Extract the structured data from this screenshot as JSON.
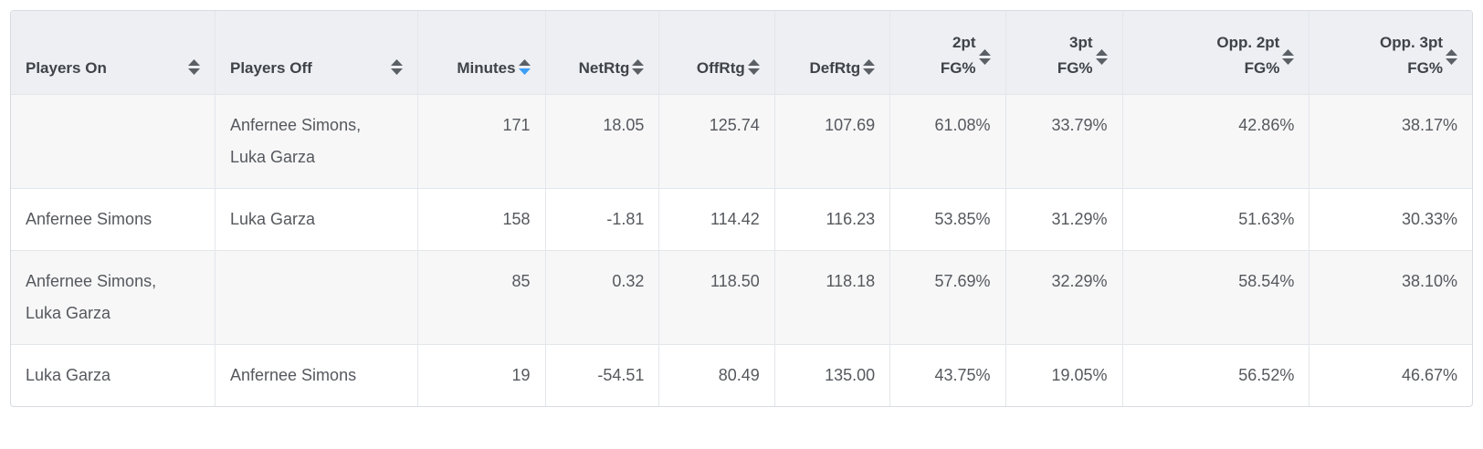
{
  "colors": {
    "header_bg": "#edeff3",
    "stripe_bg": "#f7f7f8",
    "row_bg": "#ffffff",
    "border": "#e3e6ea",
    "outer_border": "#d7dbe0",
    "header_text": "#3f4348",
    "body_text": "#55585d",
    "sort_inactive": "#5b6066",
    "sort_active": "#3b9ef8"
  },
  "table": {
    "columns": [
      {
        "id": "players-on",
        "label": "Players On",
        "align": "left",
        "sort": "none"
      },
      {
        "id": "players-off",
        "label": "Players Off",
        "align": "left",
        "sort": "none"
      },
      {
        "id": "minutes",
        "label": "Minutes",
        "align": "right",
        "sort": "desc"
      },
      {
        "id": "netrtg",
        "label": "NetRtg",
        "align": "right",
        "sort": "none"
      },
      {
        "id": "offrtg",
        "label": "OffRtg",
        "align": "right",
        "sort": "none"
      },
      {
        "id": "defrtg",
        "label": "DefRtg",
        "align": "right",
        "sort": "none"
      },
      {
        "id": "fg2",
        "label": "2pt\nFG%",
        "align": "right",
        "sort": "none"
      },
      {
        "id": "fg3",
        "label": "3pt\nFG%",
        "align": "right",
        "sort": "none"
      },
      {
        "id": "opp-fg2",
        "label": "Opp. 2pt\nFG%",
        "align": "right",
        "sort": "none"
      },
      {
        "id": "opp-fg3",
        "label": "Opp. 3pt\nFG%",
        "align": "right",
        "sort": "none"
      }
    ],
    "rows": [
      [
        "",
        "Anfernee Simons,\nLuka Garza",
        "171",
        "18.05",
        "125.74",
        "107.69",
        "61.08%",
        "33.79%",
        "42.86%",
        "38.17%"
      ],
      [
        "Anfernee Simons",
        "Luka Garza",
        "158",
        "-1.81",
        "114.42",
        "116.23",
        "53.85%",
        "31.29%",
        "51.63%",
        "30.33%"
      ],
      [
        "Anfernee Simons,\nLuka Garza",
        "",
        "85",
        "0.32",
        "118.50",
        "118.18",
        "57.69%",
        "32.29%",
        "58.54%",
        "38.10%"
      ],
      [
        "Luka Garza",
        "Anfernee Simons",
        "19",
        "-54.51",
        "80.49",
        "135.00",
        "43.75%",
        "19.05%",
        "56.52%",
        "46.67%"
      ]
    ]
  }
}
